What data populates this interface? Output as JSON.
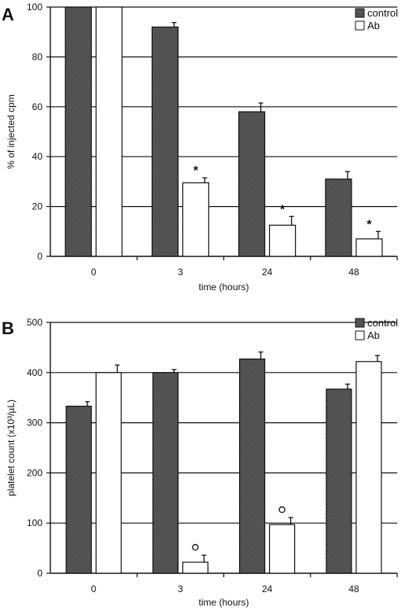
{
  "chart_data": [
    {
      "panel": "A",
      "type": "bar",
      "categories": [
        "0",
        "3",
        "24",
        "48"
      ],
      "series": [
        {
          "name": "control",
          "values": [
            100,
            92,
            58,
            31
          ],
          "errors": [
            0,
            1.8,
            3.5,
            3
          ],
          "color": "#555555"
        },
        {
          "name": "Ab",
          "values": [
            100,
            29.5,
            12.5,
            7
          ],
          "errors": [
            0,
            2,
            3.5,
            3
          ],
          "color": "#ffffff"
        }
      ],
      "markers": [
        "",
        "*",
        "*",
        "*"
      ],
      "xlabel": "time (hours)",
      "ylabel": "% of injected cpm",
      "ylim": [
        0,
        100
      ],
      "yticks": [
        "0",
        "20",
        "40",
        "60",
        "80",
        "100"
      ],
      "grid": true,
      "legend": "top-right"
    },
    {
      "panel": "B",
      "type": "bar",
      "categories": [
        "0",
        "3",
        "24",
        "48"
      ],
      "series": [
        {
          "name": "control",
          "values": [
            333,
            400,
            427,
            367
          ],
          "errors": [
            9,
            6,
            14,
            10
          ],
          "color": "#555555"
        },
        {
          "name": "Ab",
          "values": [
            400,
            22,
            97,
            422
          ],
          "errors": [
            15,
            14,
            14,
            12
          ],
          "color": "#ffffff"
        }
      ],
      "markers": [
        "",
        "○",
        "○",
        ""
      ],
      "xlabel": "time (hours)",
      "ylabel": "platelet count (x10³/µL)",
      "ylim": [
        0,
        500
      ],
      "yticks": [
        "0",
        "100",
        "200",
        "300",
        "400",
        "500"
      ],
      "grid": true,
      "legend": "top-right"
    }
  ]
}
